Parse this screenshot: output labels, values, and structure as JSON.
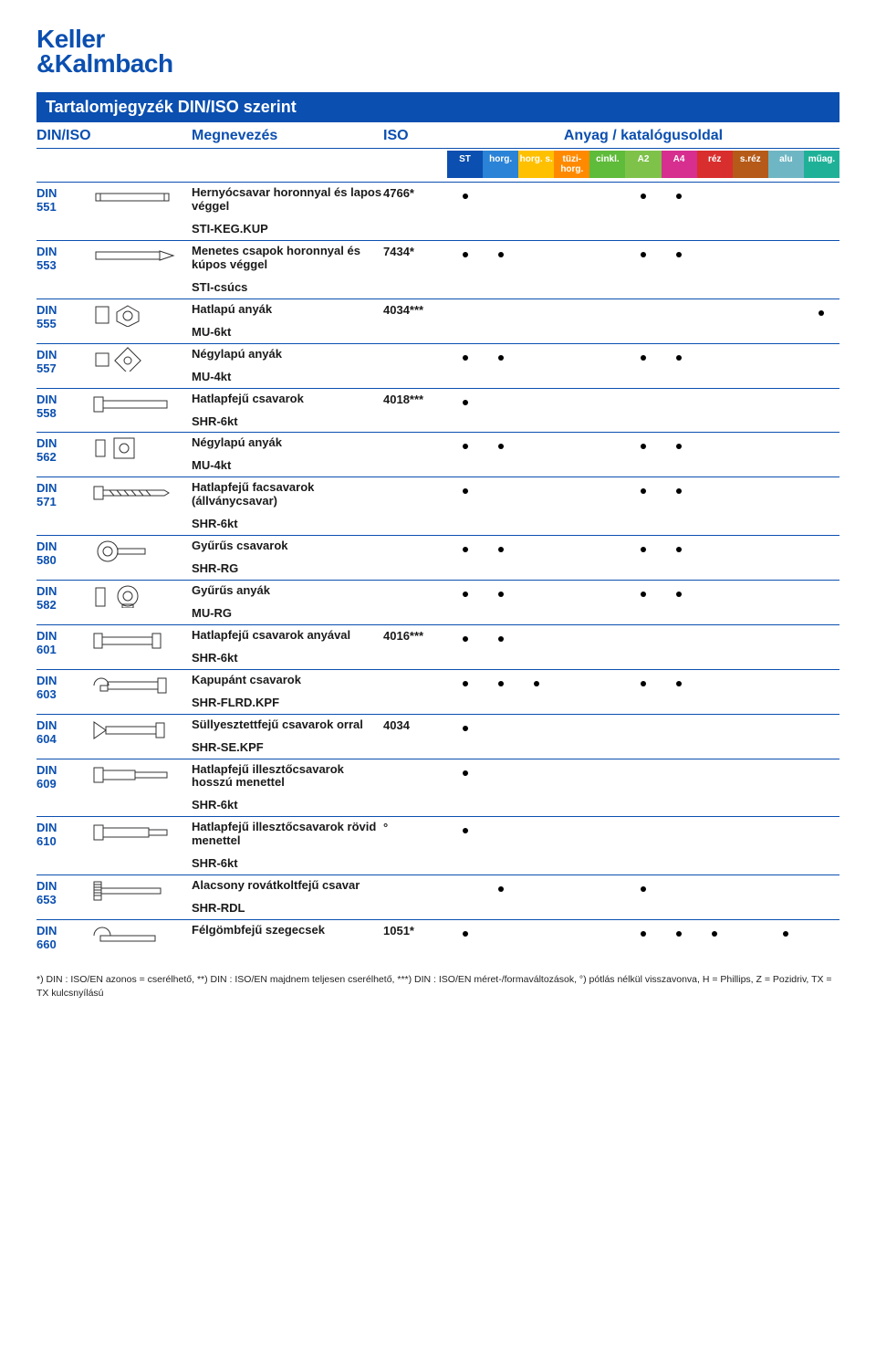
{
  "logo_line1": "Keller",
  "logo_line2": "&Kalmbach",
  "title": "Tartalomjegyzék DIN/ISO szerint",
  "header_din": "DIN/ISO",
  "header_name": "Megnevezés",
  "header_iso": "ISO",
  "header_material": "Anyag / katalógusoldal",
  "materials": [
    {
      "label": "ST",
      "bg": "#0b4fb0"
    },
    {
      "label": "horg.",
      "bg": "#2a83d6"
    },
    {
      "label": "horg. s.",
      "bg": "#ffc000"
    },
    {
      "label": "tüzi-horg.",
      "bg": "#ff8a00"
    },
    {
      "label": "cinkl.",
      "bg": "#5fbb3a"
    },
    {
      "label": "A2",
      "bg": "#7fc24a"
    },
    {
      "label": "A4",
      "bg": "#d62f8f"
    },
    {
      "label": "réz",
      "bg": "#d92e2e"
    },
    {
      "label": "s.réz",
      "bg": "#b55a18"
    },
    {
      "label": "alu",
      "bg": "#6fb6c4"
    },
    {
      "label": "műag.",
      "bg": "#1fb198"
    }
  ],
  "rows": [
    {
      "din": "DIN 551",
      "name": "Hernyócsavar horonnyal és lapos véggel",
      "sub": "STI-KEG.KUP",
      "iso": "4766*",
      "dots": [
        1,
        0,
        0,
        0,
        0,
        1,
        1,
        0,
        0,
        0,
        0
      ],
      "icon": "setscrew"
    },
    {
      "din": "DIN 553",
      "name": "Menetes csapok horonnyal és kúpos véggel",
      "sub": "STI-csúcs",
      "iso": "7434*",
      "dots": [
        1,
        1,
        0,
        0,
        0,
        1,
        1,
        0,
        0,
        0,
        0
      ],
      "icon": "pointscrew"
    },
    {
      "din": "DIN 555",
      "name": "Hatlapú anyák",
      "sub": "MU-6kt",
      "iso": "4034***",
      "dots": [
        0,
        0,
        0,
        0,
        0,
        0,
        0,
        0,
        0,
        0,
        1
      ],
      "icon": "hexnut"
    },
    {
      "din": "DIN 557",
      "name": "Négylapú anyák",
      "sub": "MU-4kt",
      "iso": "",
      "dots": [
        1,
        1,
        0,
        0,
        0,
        1,
        1,
        0,
        0,
        0,
        0
      ],
      "icon": "sqnut"
    },
    {
      "din": "DIN 558",
      "name": "Hatlapfejű csavarok",
      "sub": "SHR-6kt",
      "iso": "4018***",
      "dots": [
        1,
        0,
        0,
        0,
        0,
        0,
        0,
        0,
        0,
        0,
        0
      ],
      "icon": "hexbolt"
    },
    {
      "din": "DIN 562",
      "name": "Négylapú anyák",
      "sub": "MU-4kt",
      "iso": "",
      "dots": [
        1,
        1,
        0,
        0,
        0,
        1,
        1,
        0,
        0,
        0,
        0
      ],
      "icon": "sqnut2"
    },
    {
      "din": "DIN 571",
      "name": "Hatlapfejű facsavarok (állványcsavar)",
      "sub": "SHR-6kt",
      "iso": "",
      "dots": [
        1,
        0,
        0,
        0,
        0,
        1,
        1,
        0,
        0,
        0,
        0
      ],
      "icon": "lagscrew"
    },
    {
      "din": "DIN 580",
      "name": "Gyűrűs csavarok",
      "sub": "SHR-RG",
      "iso": "",
      "dots": [
        1,
        1,
        0,
        0,
        0,
        1,
        1,
        0,
        0,
        0,
        0
      ],
      "icon": "eyebolt"
    },
    {
      "din": "DIN 582",
      "name": "Gyűrűs anyák",
      "sub": "MU-RG",
      "iso": "",
      "dots": [
        1,
        1,
        0,
        0,
        0,
        1,
        1,
        0,
        0,
        0,
        0
      ],
      "icon": "eyenut"
    },
    {
      "din": "DIN 601",
      "name": "Hatlapfejű csavarok anyával",
      "sub": "SHR-6kt",
      "iso": "4016***",
      "dots": [
        1,
        1,
        0,
        0,
        0,
        0,
        0,
        0,
        0,
        0,
        0
      ],
      "icon": "boltnut"
    },
    {
      "din": "DIN 603",
      "name": "Kapupánt csavarok",
      "sub": "SHR-FLRD.KPF",
      "iso": "",
      "dots": [
        1,
        1,
        1,
        0,
        0,
        1,
        1,
        0,
        0,
        0,
        0
      ],
      "icon": "carriage"
    },
    {
      "din": "DIN 604",
      "name": "Süllyesztettfejű csavarok orral",
      "sub": "SHR-SE.KPF",
      "iso": "4034",
      "dots": [
        1,
        0,
        0,
        0,
        0,
        0,
        0,
        0,
        0,
        0,
        0
      ],
      "icon": "countersunk"
    },
    {
      "din": "DIN 609",
      "name": "Hatlapfejű illesztőcsavarok hosszú menettel",
      "sub": "SHR-6kt",
      "iso": "",
      "dots": [
        1,
        0,
        0,
        0,
        0,
        0,
        0,
        0,
        0,
        0,
        0
      ],
      "icon": "fitlong"
    },
    {
      "din": "DIN 610",
      "name": "Hatlapfejű illesztőcsavarok rövid menettel",
      "sub": "SHR-6kt",
      "iso": "°",
      "dots": [
        1,
        0,
        0,
        0,
        0,
        0,
        0,
        0,
        0,
        0,
        0
      ],
      "icon": "fitshort"
    },
    {
      "din": "DIN 653",
      "name": "Alacsony rovátkoltfejű csavar",
      "sub": "SHR-RDL",
      "iso": "",
      "dots": [
        0,
        1,
        0,
        0,
        0,
        1,
        0,
        0,
        0,
        0,
        0
      ],
      "icon": "knurled"
    },
    {
      "din": "DIN 660",
      "name": "Félgömbfejű szegecsek",
      "sub": "",
      "iso": "1051*",
      "dots": [
        1,
        0,
        0,
        0,
        0,
        1,
        1,
        1,
        0,
        1,
        0
      ],
      "icon": "rivet"
    }
  ],
  "footnote": "*) DIN : ISO/EN azonos = cserélhető, **) DIN : ISO/EN majdnem teljesen cserélhető, ***) DIN : ISO/EN méret-/formaváltozások, °) pótlás nélkül visszavonva, H = Phillips, Z = Pozidriv, TX = TX kulcsnyílású"
}
